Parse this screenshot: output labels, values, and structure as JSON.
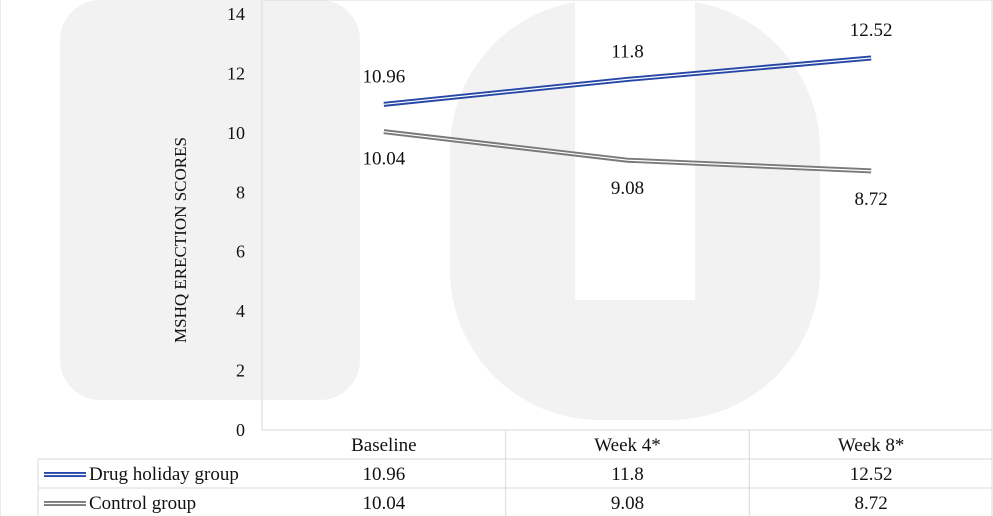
{
  "chart_data": {
    "type": "line",
    "ylabel": "MSHQ ERECTION SCORES",
    "ylim": [
      0,
      14
    ],
    "yticks": [
      0,
      2,
      4,
      6,
      8,
      10,
      12,
      14
    ],
    "categories": [
      "Baseline",
      "Week 4*",
      "Week 8*"
    ],
    "series": [
      {
        "name": "Drug holiday group",
        "values": [
          10.96,
          11.8,
          12.52
        ],
        "color": "#2747a8"
      },
      {
        "name": "Control group",
        "values": [
          10.04,
          9.08,
          8.72
        ],
        "color": "#7a7a7a"
      }
    ],
    "data_labels": [
      [
        "10.96",
        "11.8",
        "12.52"
      ],
      [
        "10.04",
        "9.08",
        "8.72"
      ]
    ],
    "legend": "data-table-below",
    "grid": false
  }
}
